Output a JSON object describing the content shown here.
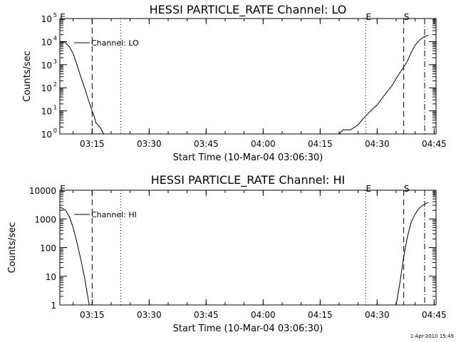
{
  "chart_data": [
    {
      "type": "line",
      "title": "HESSI PARTICLE_RATE Channel: LO",
      "xlabel": "Start Time (10-Mar-04 03:06:30)",
      "ylabel": "Counts/sec",
      "yscale": "log",
      "ylim": [
        1,
        100000
      ],
      "xlim": [
        "03:06:30",
        "04:45:30"
      ],
      "x_ticks": [
        "03:15",
        "03:30",
        "03:45",
        "04:00",
        "04:15",
        "04:30",
        "04:45"
      ],
      "y_ticks": [
        {
          "value": 1,
          "base": "10",
          "exp": "0"
        },
        {
          "value": 10,
          "base": "10",
          "exp": "1"
        },
        {
          "value": 100,
          "base": "10",
          "exp": "2"
        },
        {
          "value": 1000,
          "base": "10",
          "exp": "3"
        },
        {
          "value": 10000,
          "base": "10",
          "exp": "4"
        },
        {
          "value": 100000,
          "base": "10",
          "exp": "5"
        }
      ],
      "legend": {
        "position": "top-left",
        "label": "Channel: LO"
      },
      "series": [
        {
          "name": "Channel: LO",
          "segments": [
            [
              [
                "03:06:30",
                10000
              ],
              [
                "03:08",
                9000
              ],
              [
                "03:09",
                6000
              ],
              [
                "03:10",
                3000
              ],
              [
                "03:11",
                1000
              ],
              [
                "03:12",
                300
              ],
              [
                "03:13",
                100
              ],
              [
                "03:14",
                30
              ],
              [
                "03:15",
                10
              ],
              [
                "03:15:30",
                6
              ],
              [
                "03:16",
                3
              ],
              [
                "03:17",
                2
              ],
              [
                "03:17:30",
                1.5
              ],
              [
                "03:18",
                1
              ]
            ],
            [
              [
                "04:20",
                1
              ],
              [
                "04:21",
                1.5
              ],
              [
                "04:23",
                1.5
              ],
              [
                "04:25",
                2.5
              ],
              [
                "04:26",
                4
              ],
              [
                "04:27",
                6
              ],
              [
                "04:28",
                9
              ],
              [
                "04:29",
                13
              ],
              [
                "04:30",
                18
              ],
              [
                "04:31",
                30
              ],
              [
                "04:32",
                50
              ],
              [
                "04:33",
                80
              ],
              [
                "04:34",
                130
              ],
              [
                "04:35",
                250
              ],
              [
                "04:36",
                450
              ],
              [
                "04:37",
                800
              ],
              [
                "04:38",
                1500
              ],
              [
                "04:39",
                3500
              ],
              [
                "04:40",
                7000
              ],
              [
                "04:41",
                11000
              ],
              [
                "04:42",
                15000
              ],
              [
                "04:43",
                18000
              ],
              [
                "04:43:30",
                19000
              ]
            ]
          ]
        }
      ],
      "markers": [
        {
          "time": "03:15:00",
          "style": "dashed",
          "label": ""
        },
        {
          "time": "03:22:30",
          "style": "dotted",
          "label": ""
        },
        {
          "time": "04:27:00",
          "style": "dotted",
          "label": "E"
        },
        {
          "time": "04:37:00",
          "style": "dashed",
          "label": "S"
        },
        {
          "time": "04:42:30",
          "style": "dashdot",
          "label": ""
        },
        {
          "time": "03:06:30",
          "style": "none",
          "label": "E"
        }
      ]
    },
    {
      "type": "line",
      "title": "HESSI PARTICLE_RATE Channel: HI",
      "xlabel": "Start Time (10-Mar-04 03:06:30)",
      "ylabel": "Counts/sec",
      "yscale": "log",
      "ylim": [
        1,
        10000
      ],
      "xlim": [
        "03:06:30",
        "04:45:30"
      ],
      "x_ticks": [
        "03:15",
        "03:30",
        "03:45",
        "04:00",
        "04:15",
        "04:30",
        "04:45"
      ],
      "y_ticks": [
        {
          "value": 1,
          "base": "1",
          "exp": ""
        },
        {
          "value": 10,
          "base": "10",
          "exp": ""
        },
        {
          "value": 100,
          "base": "100",
          "exp": ""
        },
        {
          "value": 1000,
          "base": "1000",
          "exp": ""
        },
        {
          "value": 10000,
          "base": "10000",
          "exp": ""
        }
      ],
      "legend": {
        "position": "top-left",
        "label": "Channel: HI"
      },
      "series": [
        {
          "name": "Channel: HI",
          "segments": [
            [
              [
                "03:06:30",
                2500
              ],
              [
                "03:07",
                2400
              ],
              [
                "03:08",
                2000
              ],
              [
                "03:09",
                1200
              ],
              [
                "03:10",
                500
              ],
              [
                "03:11",
                150
              ],
              [
                "03:12",
                40
              ],
              [
                "03:13",
                9
              ],
              [
                "03:14",
                1.5
              ],
              [
                "03:14:15",
                1
              ]
            ],
            [
              [
                "04:35",
                1
              ],
              [
                "04:36",
                6
              ],
              [
                "04:37",
                50
              ],
              [
                "04:38",
                250
              ],
              [
                "04:39",
                800
              ],
              [
                "04:40",
                1500
              ],
              [
                "04:41",
                2300
              ],
              [
                "04:42",
                3000
              ],
              [
                "04:43:30",
                3800
              ]
            ]
          ]
        }
      ],
      "markers": [
        {
          "time": "03:15:00",
          "style": "dashed",
          "label": ""
        },
        {
          "time": "03:22:30",
          "style": "dotted",
          "label": ""
        },
        {
          "time": "04:27:00",
          "style": "dotted",
          "label": "E"
        },
        {
          "time": "04:37:00",
          "style": "dashed",
          "label": "S"
        },
        {
          "time": "04:42:30",
          "style": "dashdot",
          "label": ""
        },
        {
          "time": "03:06:30",
          "style": "none",
          "label": "E"
        }
      ]
    }
  ],
  "footer": {
    "timestamp": "1-Apr-2010 15:49"
  }
}
